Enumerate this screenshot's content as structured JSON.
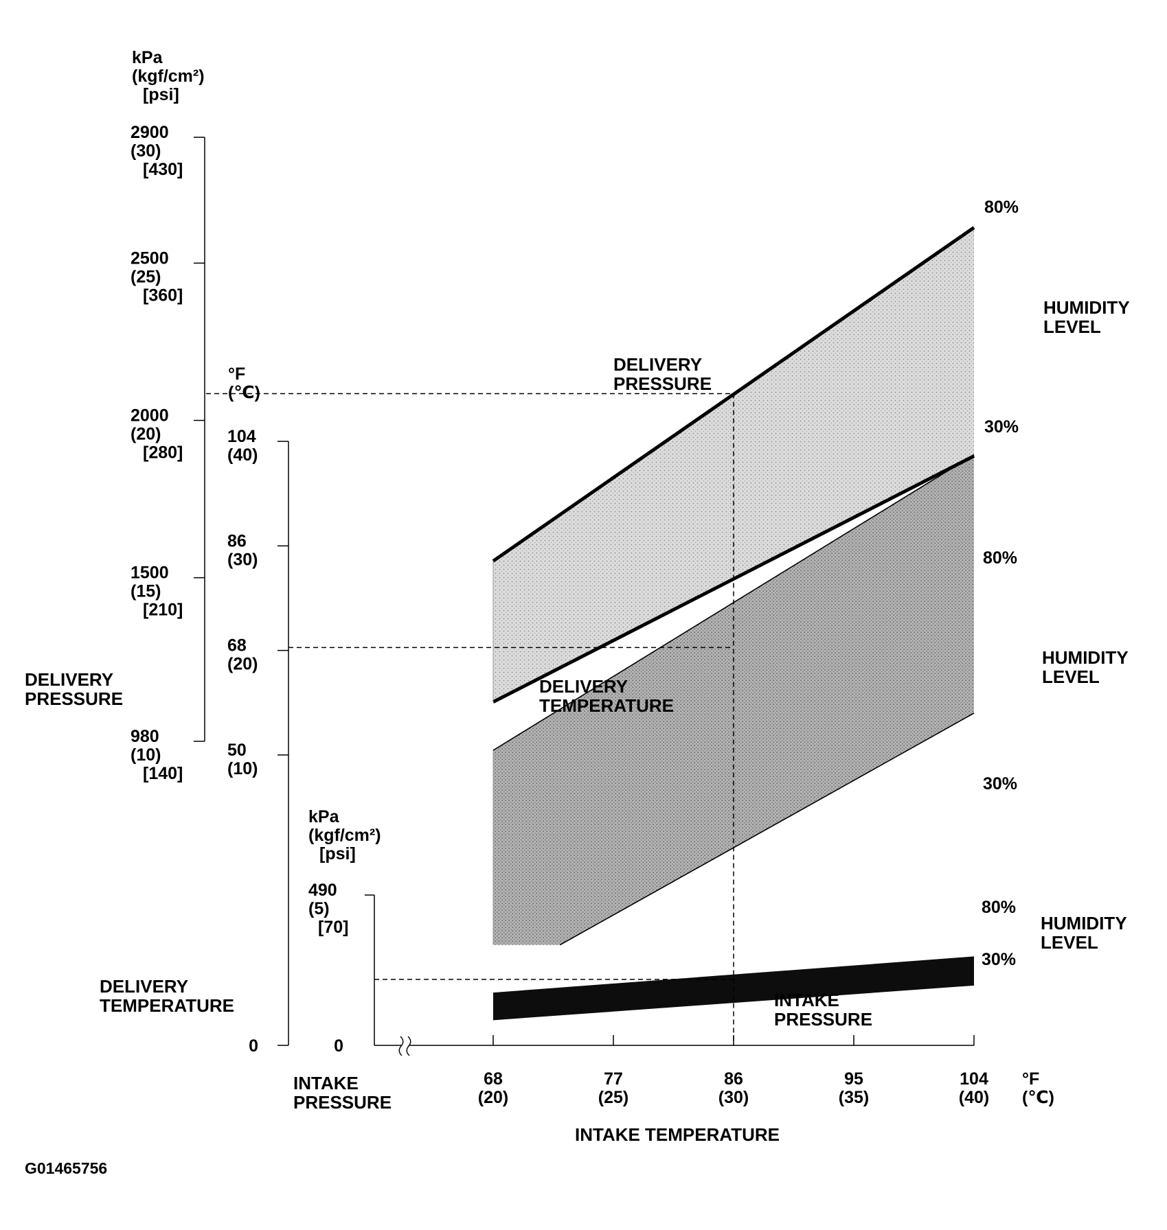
{
  "figure_id": "G01465756",
  "chart_data": {
    "type": "area",
    "xlabel": "INTAKE TEMPERATURE",
    "x_unit_primary": "°F",
    "x_unit_secondary": "(℃)",
    "x_ticks": [
      {
        "value": 68,
        "primary": "68",
        "secondary": "(20)"
      },
      {
        "value": 77,
        "primary": "77",
        "secondary": "(25)"
      },
      {
        "value": 86,
        "primary": "86",
        "secondary": "(30)"
      },
      {
        "value": 95,
        "primary": "95",
        "secondary": "(35)"
      },
      {
        "value": 104,
        "primary": "104",
        "secondary": "(40)"
      }
    ],
    "xlim": [
      59,
      104
    ],
    "axes": {
      "delivery_pressure": {
        "label_lines": [
          "DELIVERY",
          "PRESSURE"
        ],
        "unit_lines": [
          "kPa",
          "(kgf/cm²)",
          "[psi]"
        ],
        "range": [
          980,
          2900
        ],
        "ticks": [
          {
            "value": 2900,
            "lines": [
              "2900",
              "(30)",
              "[430]"
            ]
          },
          {
            "value": 2500,
            "lines": [
              "2500",
              "(25)",
              "[360]"
            ]
          },
          {
            "value": 2000,
            "lines": [
              "2000",
              "(20)",
              "[280]"
            ]
          },
          {
            "value": 1500,
            "lines": [
              "1500",
              "(15)",
              "[210]"
            ]
          },
          {
            "value": 980,
            "lines": [
              "980",
              "(10)",
              "[140]"
            ]
          }
        ]
      },
      "delivery_temperature": {
        "label_lines": [
          "DELIVERY",
          "TEMPERATURE"
        ],
        "unit_lines": [
          "°F",
          "(℃)"
        ],
        "range": [
          0,
          104
        ],
        "ticks": [
          {
            "value": 104,
            "lines": [
              "104",
              "(40)"
            ]
          },
          {
            "value": 86,
            "lines": [
              "86",
              "(30)"
            ]
          },
          {
            "value": 68,
            "lines": [
              "68",
              "(20)"
            ]
          },
          {
            "value": 50,
            "lines": [
              "50",
              "(10)"
            ]
          },
          {
            "value": 0,
            "lines": [
              "0"
            ]
          }
        ]
      },
      "intake_pressure": {
        "label_lines": [
          "INTAKE",
          "PRESSURE"
        ],
        "unit_lines": [
          "kPa",
          "(kgf/cm²)",
          "[psi]"
        ],
        "range": [
          0,
          490
        ],
        "ticks": [
          {
            "value": 490,
            "lines": [
              "490",
              "(5)",
              "[70]"
            ]
          },
          {
            "value": 0,
            "lines": [
              "0"
            ]
          }
        ]
      }
    },
    "series": [
      {
        "name": "DELIVERY PRESSURE",
        "label_lines": [
          "DELIVERY",
          "PRESSURE"
        ],
        "axis": "delivery_pressure",
        "fill": "#d4d4d4",
        "bounds": [
          {
            "humidity": "80%",
            "x": [
              68,
              104
            ],
            "y": [
              1553,
              2613
            ]
          },
          {
            "humidity": "30%",
            "x": [
              68,
              104
            ],
            "y": [
              1105,
              1887
            ]
          }
        ]
      },
      {
        "name": "DELIVERY TEMPERATURE",
        "label_lines": [
          "DELIVERY",
          "TEMPERATURE"
        ],
        "axis": "delivery_temperature",
        "fill": "#a9a9a9",
        "bounds": [
          {
            "humidity": "80%",
            "x": [
              68,
              104
            ],
            "y": [
              50.8,
              101.7
            ]
          },
          {
            "humidity": "30%",
            "x": [
              73,
              104
            ],
            "y": [
              17.3,
              57.2
            ]
          }
        ],
        "lower_start_x": 68,
        "lower_start_y": 17.3
      },
      {
        "name": "INTAKE PRESSURE",
        "label_lines": [
          "INTAKE",
          "PRESSURE"
        ],
        "axis": "intake_pressure",
        "fill": "#0d0d0d",
        "bounds": [
          {
            "humidity": "80%",
            "x": [
              68,
              104
            ],
            "y": [
              172,
              290
            ]
          },
          {
            "humidity": "30%",
            "x": [
              68,
              104
            ],
            "y": [
              82,
              195
            ]
          }
        ]
      }
    ],
    "humidity_label_lines": [
      "HUMIDITY",
      "LEVEL"
    ],
    "guide_lines": [
      {
        "style": "dashed",
        "x": 86,
        "from": "delivery_pressure",
        "y": 2085
      },
      {
        "style": "dashed",
        "x": 86,
        "from": "delivery_temperature",
        "y": 68.5
      },
      {
        "style": "dashed",
        "x": 86,
        "from": "intake_pressure",
        "y": 215
      }
    ],
    "axis_break": "≀≀"
  },
  "colors": {
    "ink": "#000000",
    "background": "#ffffff"
  }
}
